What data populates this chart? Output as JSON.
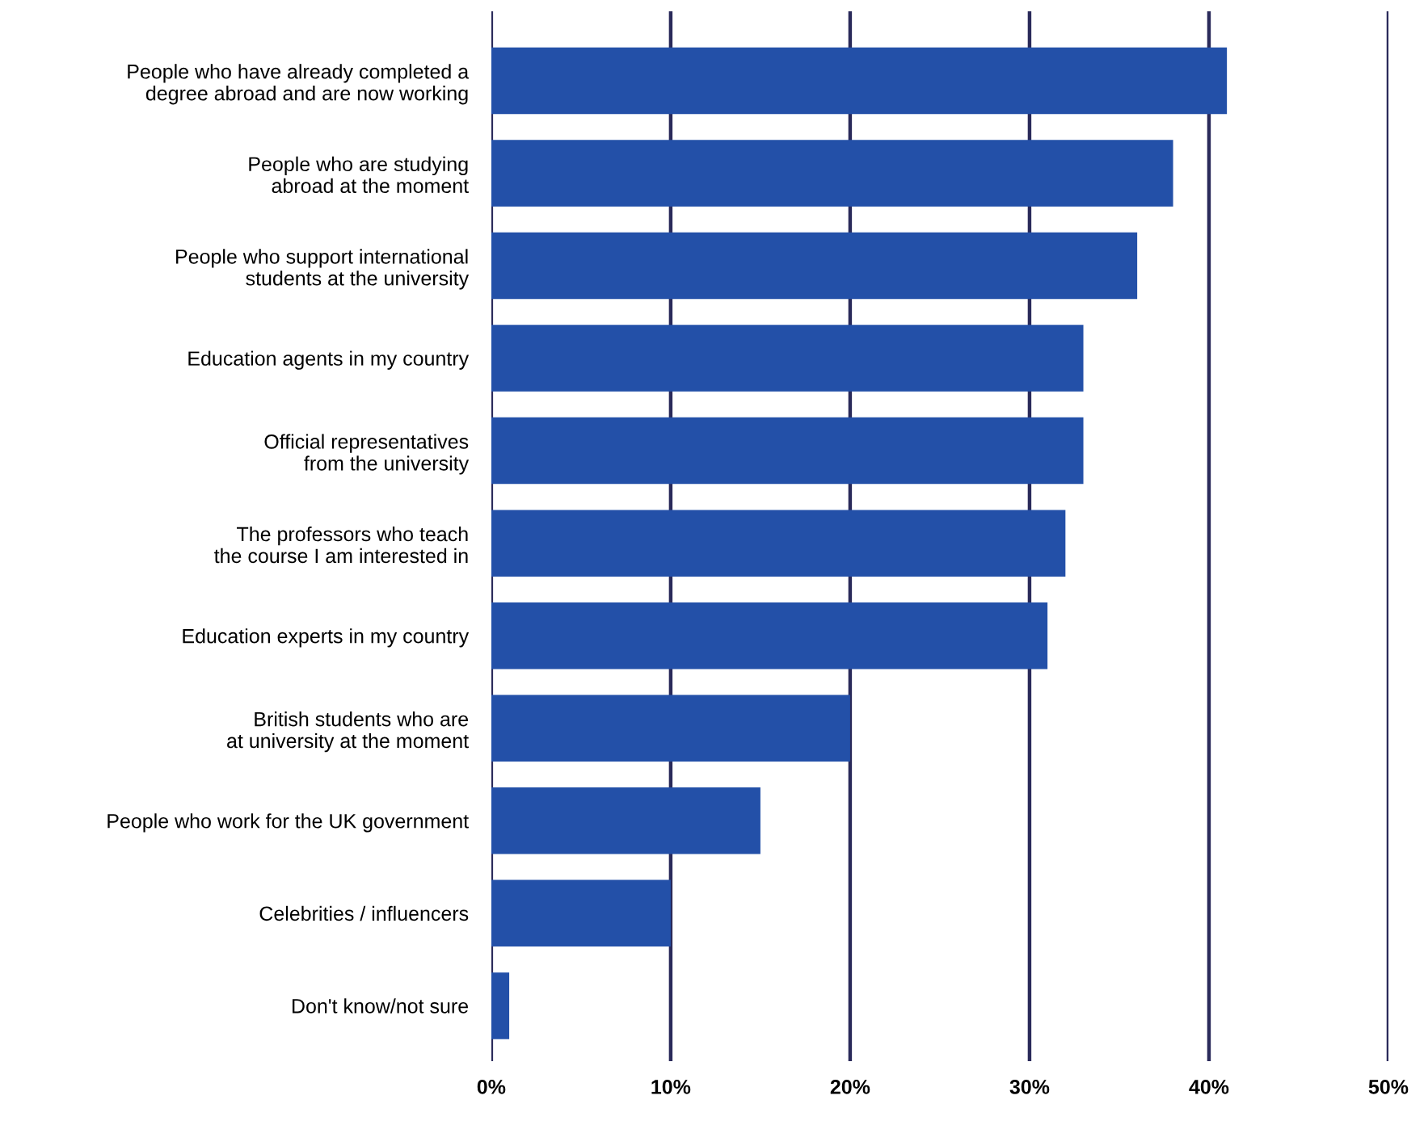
{
  "chart_data": {
    "type": "bar",
    "orientation": "horizontal",
    "categories": [
      "People who have already completed a\ndegree abroad and are now working",
      "People who are studying\nabroad at the moment",
      "People who support international\nstudents at the university",
      "Education agents in my country",
      "Official representatives\nfrom the university",
      "The professors who teach\nthe course I am interested in",
      "Education experts in my country",
      "British students who are\nat university at the moment",
      "People who work for the UK government",
      "Celebrities / influencers",
      "Don't know/not sure"
    ],
    "values": [
      41,
      38,
      36,
      33,
      33,
      32,
      31,
      20,
      15,
      10,
      1
    ],
    "color": "#2350a8",
    "xlim": [
      0,
      50
    ],
    "xticks": [
      {
        "value": 0,
        "label": "0%"
      },
      {
        "value": 10,
        "label": "10%"
      },
      {
        "value": 20,
        "label": "20%"
      },
      {
        "value": 30,
        "label": "30%"
      },
      {
        "value": 40,
        "label": "40%"
      },
      {
        "value": 50,
        "label": "50%"
      }
    ],
    "grid": "x"
  }
}
